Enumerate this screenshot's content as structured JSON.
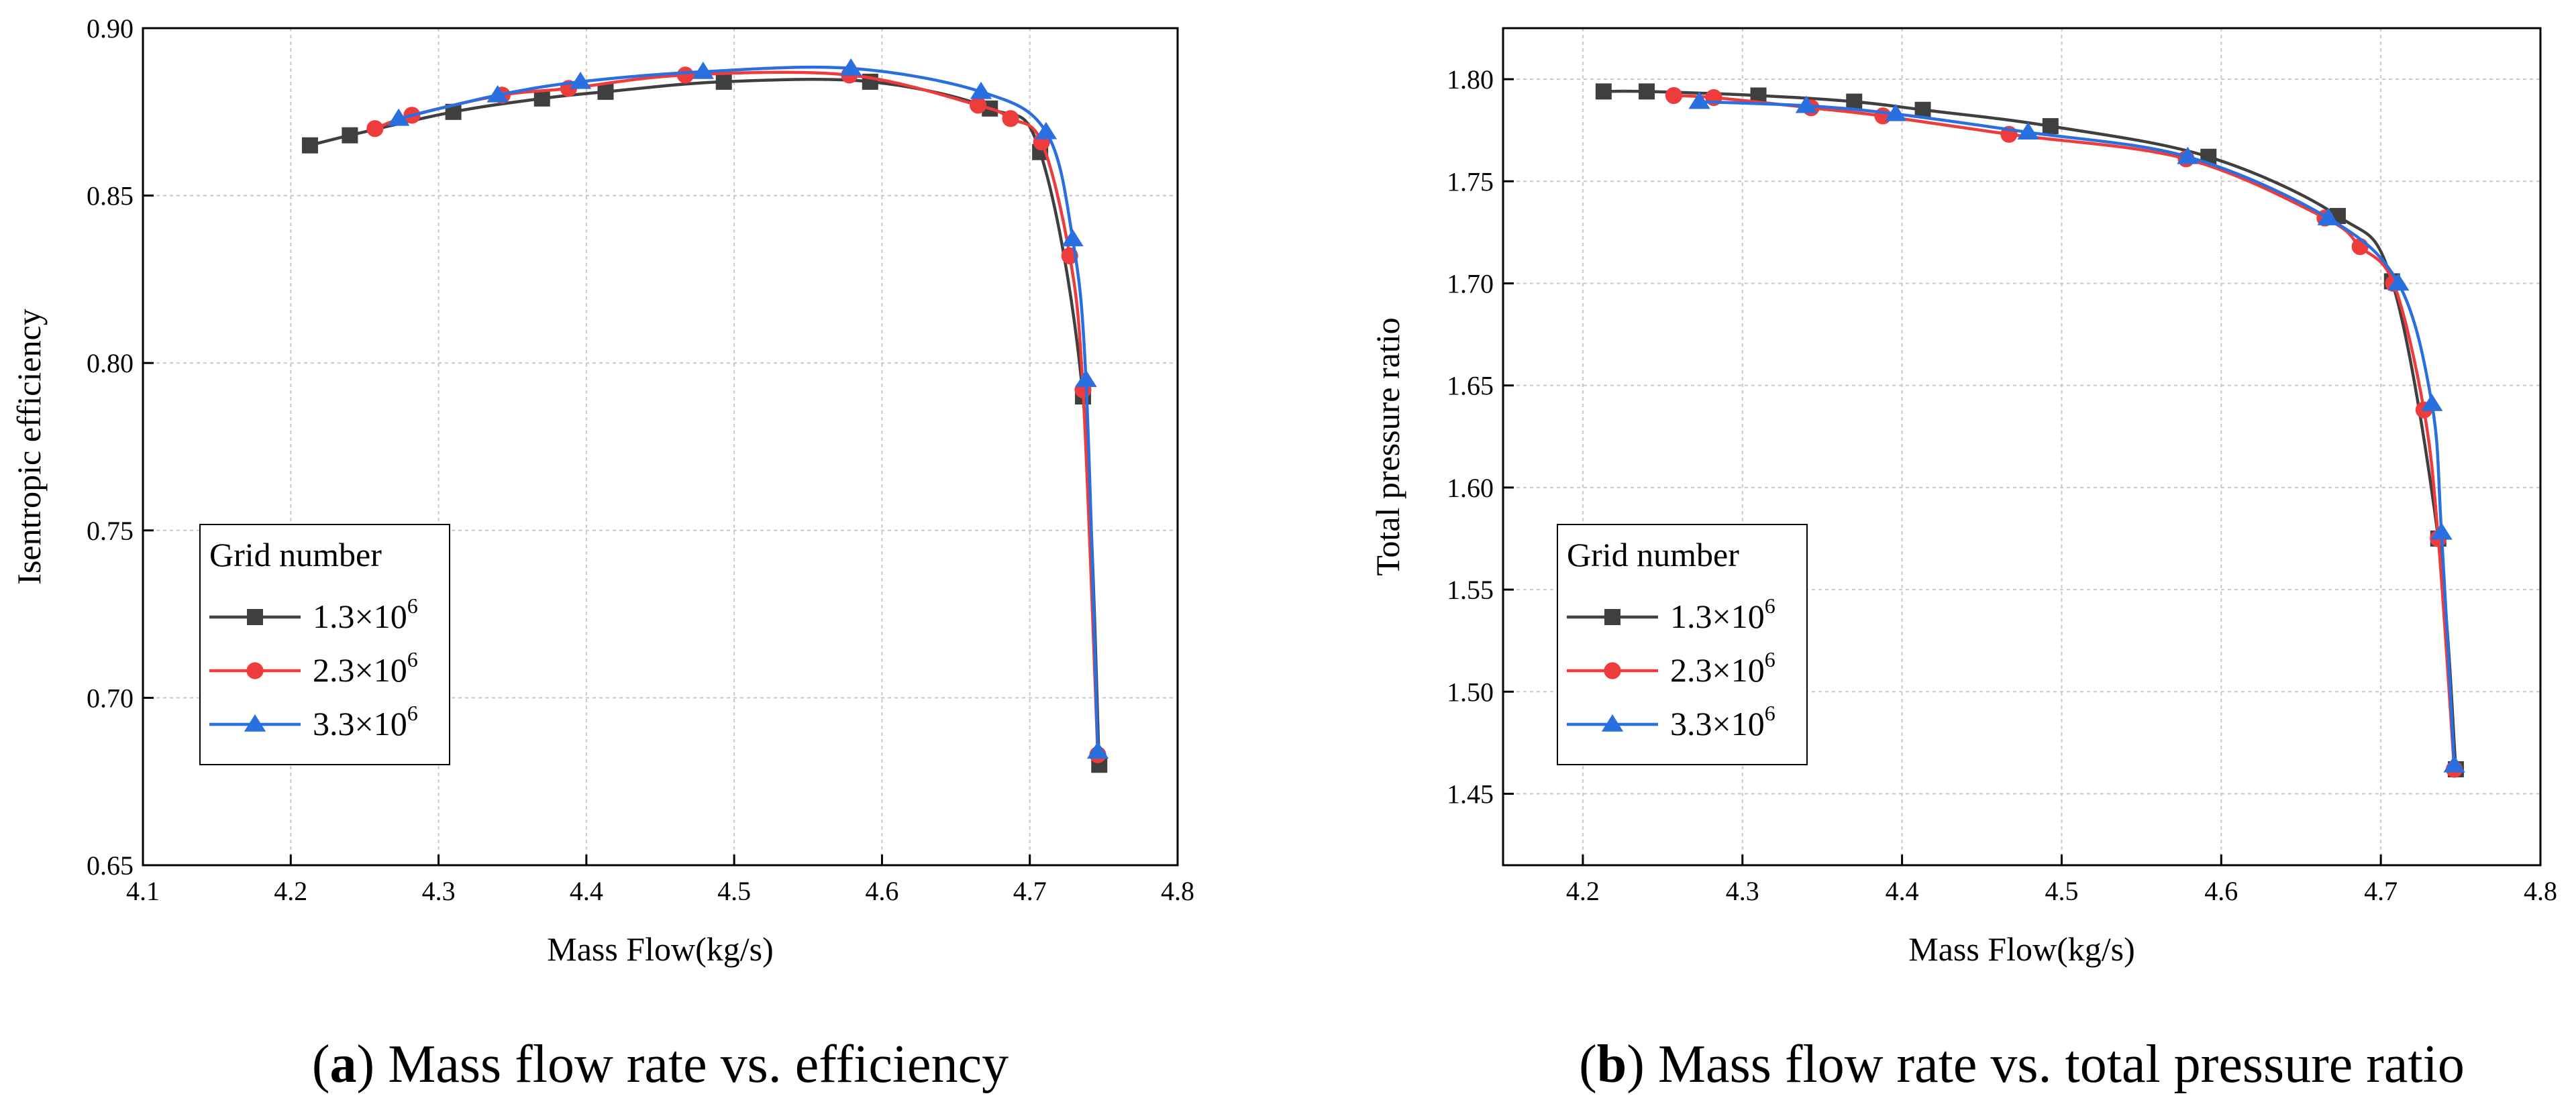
{
  "chart_data": [
    {
      "type": "line",
      "caption_letter": "a",
      "caption_text": "Mass flow rate vs. efficiency",
      "xlabel": "Mass Flow(kg/s)",
      "ylabel": "Isentropic efficiency",
      "xlim": [
        4.1,
        4.8
      ],
      "ylim": [
        0.65,
        0.9
      ],
      "xticks": [
        4.1,
        4.2,
        4.3,
        4.4,
        4.5,
        4.6,
        4.7,
        4.8
      ],
      "xtick_labels": [
        "4.1",
        "4.2",
        "4.3",
        "4.4",
        "4.5",
        "4.6",
        "4.7",
        "4.8"
      ],
      "yticks": [
        0.65,
        0.7,
        0.75,
        0.8,
        0.85,
        0.9
      ],
      "ytick_labels": [
        "0.65",
        "0.70",
        "0.75",
        "0.80",
        "0.85",
        "0.90"
      ],
      "grid": true,
      "legend": {
        "title": "Grid number",
        "position": "lower-left",
        "entries": [
          {
            "base": "1.3×10",
            "exp": "6"
          },
          {
            "base": "2.3×10",
            "exp": "6"
          },
          {
            "base": "3.3×10",
            "exp": "6"
          }
        ]
      },
      "series": [
        {
          "name": "1.3×10^6",
          "color": "#3f3f3f",
          "marker": "square",
          "x": [
            4.213,
            4.24,
            4.31,
            4.37,
            4.413,
            4.493,
            4.592,
            4.673,
            4.707,
            4.736,
            4.747
          ],
          "y": [
            0.865,
            0.868,
            0.875,
            0.879,
            0.881,
            0.884,
            0.884,
            0.876,
            0.863,
            0.79,
            0.68
          ]
        },
        {
          "name": "2.3×10^6",
          "color": "#ee3b3b",
          "marker": "circle",
          "x": [
            4.257,
            4.282,
            4.343,
            4.388,
            4.467,
            4.578,
            4.665,
            4.687,
            4.708,
            4.727,
            4.736,
            4.746
          ],
          "y": [
            0.87,
            0.874,
            0.88,
            0.882,
            0.886,
            0.886,
            0.877,
            0.873,
            0.866,
            0.832,
            0.792,
            0.683
          ]
        },
        {
          "name": "3.3×10^6",
          "color": "#2a6fe0",
          "marker": "triangle",
          "x": [
            4.273,
            4.34,
            4.396,
            4.479,
            4.579,
            4.667,
            4.711,
            4.729,
            4.738,
            4.746
          ],
          "y": [
            0.873,
            0.88,
            0.884,
            0.887,
            0.888,
            0.881,
            0.869,
            0.837,
            0.795,
            0.684
          ]
        }
      ]
    },
    {
      "type": "line",
      "caption_letter": "b",
      "caption_text": "Mass flow rate vs. total pressure ratio",
      "xlabel": "Mass Flow(kg/s)",
      "ylabel": "Total pressure ratio",
      "xlim": [
        4.15,
        4.8
      ],
      "ylim": [
        1.415,
        1.825
      ],
      "xticks": [
        4.2,
        4.3,
        4.4,
        4.5,
        4.6,
        4.7,
        4.8
      ],
      "xtick_labels": [
        "4.2",
        "4.3",
        "4.4",
        "4.5",
        "4.6",
        "4.7",
        "4.8"
      ],
      "yticks": [
        1.45,
        1.5,
        1.55,
        1.6,
        1.65,
        1.7,
        1.75,
        1.8
      ],
      "ytick_labels": [
        "1.45",
        "1.50",
        "1.55",
        "1.60",
        "1.65",
        "1.70",
        "1.75",
        "1.80"
      ],
      "grid": true,
      "legend": {
        "title": "Grid number",
        "position": "lower-left",
        "entries": [
          {
            "base": "1.3×10",
            "exp": "6"
          },
          {
            "base": "2.3×10",
            "exp": "6"
          },
          {
            "base": "3.3×10",
            "exp": "6"
          }
        ]
      },
      "series": [
        {
          "name": "1.3×10^6",
          "color": "#3f3f3f",
          "marker": "square",
          "x": [
            4.213,
            4.24,
            4.31,
            4.37,
            4.413,
            4.493,
            4.592,
            4.673,
            4.707,
            4.736,
            4.747
          ],
          "y": [
            1.794,
            1.794,
            1.792,
            1.789,
            1.785,
            1.777,
            1.762,
            1.733,
            1.701,
            1.575,
            1.462
          ]
        },
        {
          "name": "2.3×10^6",
          "color": "#ee3b3b",
          "marker": "circle",
          "x": [
            4.257,
            4.282,
            4.343,
            4.388,
            4.467,
            4.578,
            4.665,
            4.687,
            4.708,
            4.727,
            4.736,
            4.746
          ],
          "y": [
            1.792,
            1.791,
            1.786,
            1.782,
            1.773,
            1.761,
            1.732,
            1.718,
            1.7,
            1.638,
            1.575,
            1.462
          ]
        },
        {
          "name": "3.3×10^6",
          "color": "#2a6fe0",
          "marker": "triangle",
          "x": [
            4.273,
            4.34,
            4.396,
            4.479,
            4.579,
            4.667,
            4.711,
            4.732,
            4.738,
            4.746
          ],
          "y": [
            1.789,
            1.787,
            1.783,
            1.774,
            1.762,
            1.732,
            1.7,
            1.641,
            1.578,
            1.464
          ]
        }
      ]
    }
  ]
}
